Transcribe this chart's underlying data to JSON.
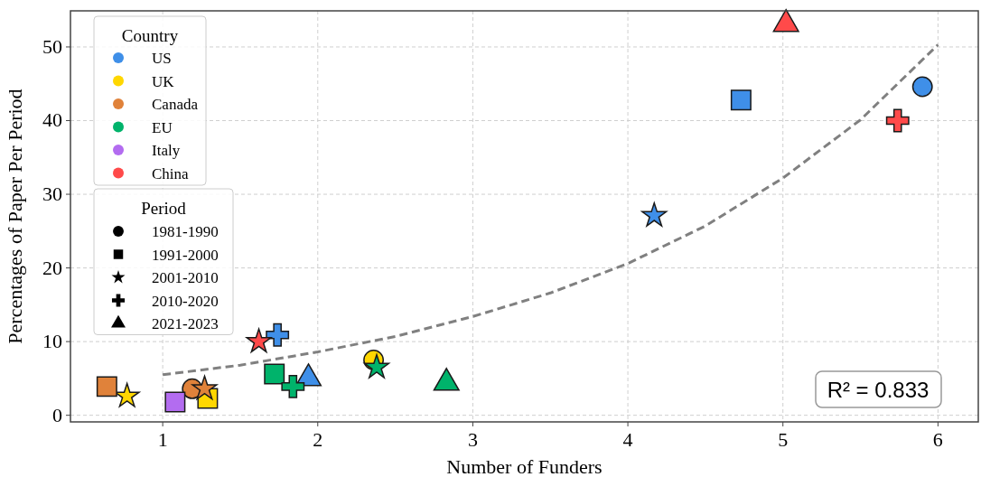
{
  "chart_data": {
    "type": "scatter",
    "xlabel": "Number of Funders",
    "ylabel": "Percentages of Paper Per Period",
    "xlim": [
      0.405,
      6.26
    ],
    "ylim": [
      -0.9,
      54.9
    ],
    "xticks": [
      1,
      2,
      3,
      4,
      5,
      6
    ],
    "yticks": [
      0,
      10,
      20,
      30,
      40,
      50
    ],
    "grid": true,
    "legend": "top left",
    "legend_title": [
      "Country",
      "Period"
    ],
    "annotations": [
      "R² = 0.833"
    ],
    "series": [
      {
        "name": "US",
        "color": "#3f8fe8",
        "x": [
          5.9,
          4.73,
          4.17,
          1.74,
          1.94
        ],
        "values": [
          44.6,
          42.8,
          27.1,
          10.9,
          5.0
        ],
        "marker": [
          "circle",
          "square",
          "star",
          "cross",
          "triangle"
        ]
      },
      {
        "name": "UK",
        "color": "#ffd700",
        "x": [
          2.36,
          1.29,
          0.77
        ],
        "values": [
          7.5,
          2.3,
          2.6
        ],
        "marker": [
          "circle",
          "square",
          "star"
        ]
      },
      {
        "name": "Canada",
        "color": "#e0823a",
        "x": [
          1.19,
          0.64,
          1.27
        ],
        "values": [
          3.6,
          3.9,
          3.6
        ],
        "marker": [
          "circle",
          "square",
          "star"
        ]
      },
      {
        "name": "EU",
        "color": "#00b36b",
        "x": [
          1.72,
          2.38,
          1.84,
          2.83
        ],
        "values": [
          5.6,
          6.5,
          3.9,
          4.4
        ],
        "marker": [
          "square",
          "star",
          "cross",
          "triangle"
        ]
      },
      {
        "name": "Italy",
        "color": "#b36cf0",
        "x": [
          1.08
        ],
        "values": [
          1.8
        ],
        "marker": [
          "square"
        ]
      },
      {
        "name": "China",
        "color": "#ff4a4a",
        "x": [
          1.62,
          5.74,
          5.02
        ],
        "values": [
          10.0,
          40.0,
          53.1
        ],
        "marker": [
          "star",
          "cross",
          "triangle"
        ]
      },
      {
        "name": "1981-1990",
        "color": "#000000",
        "marker": "circle"
      },
      {
        "name": "1991-2000",
        "color": "#000000",
        "marker": "square"
      },
      {
        "name": "2001-2010",
        "color": "#000000",
        "marker": "star"
      },
      {
        "name": "2010-2020",
        "color": "#000000",
        "marker": "cross"
      },
      {
        "name": "2021-2023",
        "color": "#000000",
        "marker": "triangle"
      },
      {
        "type": "line",
        "color": "#808080",
        "line_style": "dashed",
        "marker": "none",
        "x": [
          1,
          1.5,
          2,
          2.5,
          3,
          3.5,
          4,
          4.5,
          5,
          5.5,
          6
        ],
        "values": [
          5.5,
          6.8,
          8.6,
          10.7,
          13.4,
          16.6,
          20.6,
          25.7,
          32.2,
          40.1,
          50.3
        ]
      }
    ]
  }
}
